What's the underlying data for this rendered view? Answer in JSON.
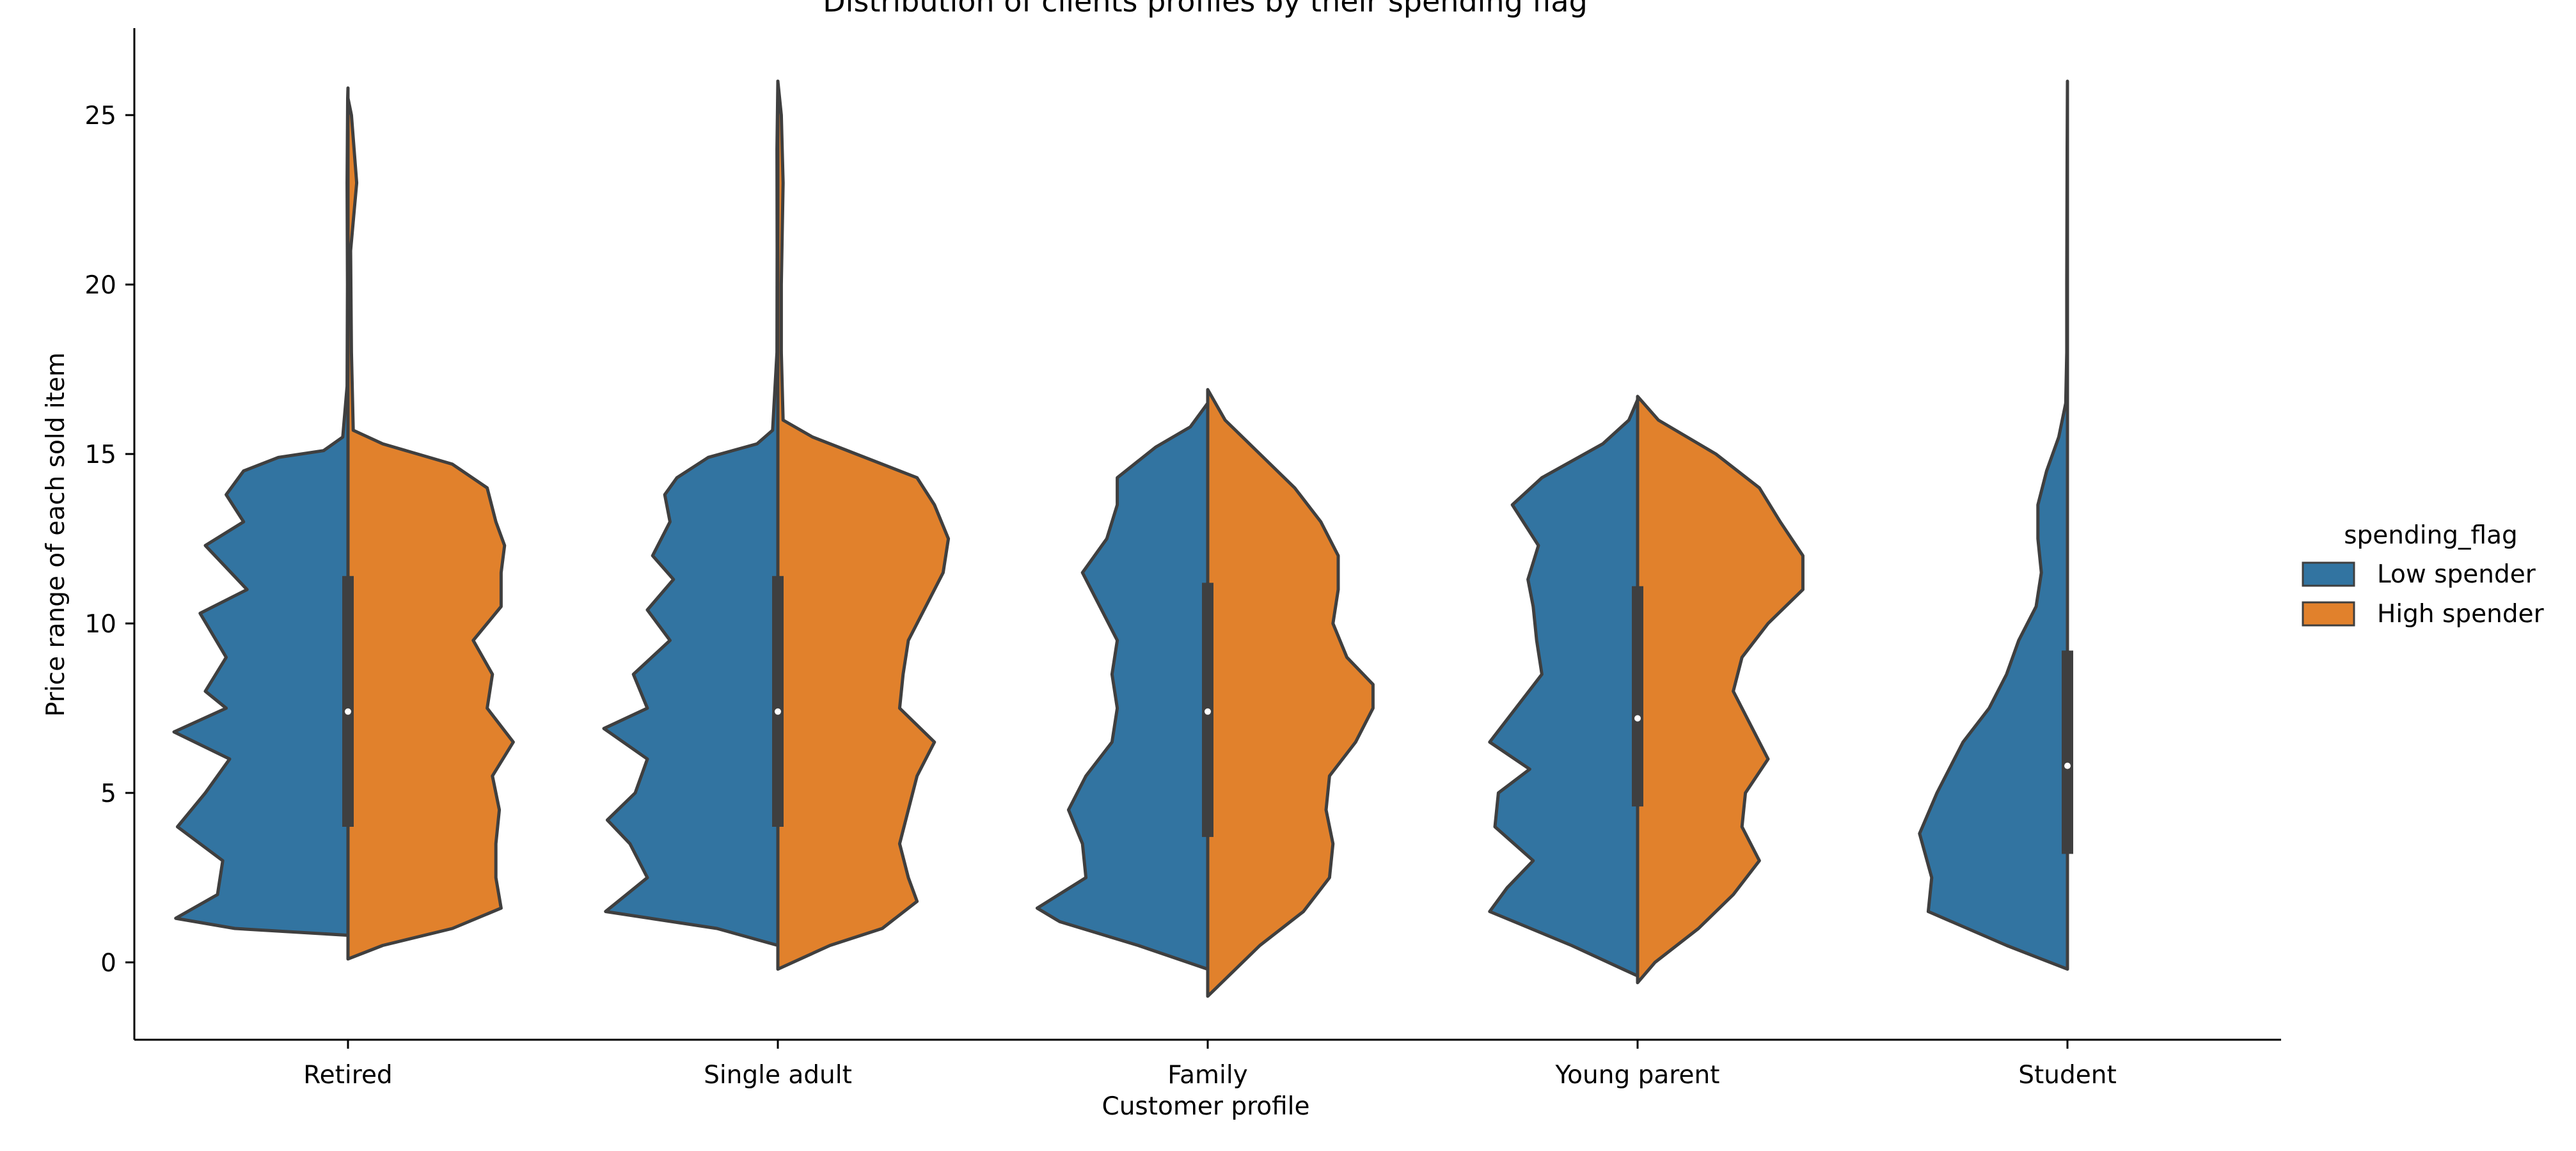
{
  "chart_data": {
    "type": "violin",
    "title": "Distribution of clients profiles by their spending flag",
    "xlabel": "Customer profile",
    "ylabel": "Price range of each sold item",
    "ylim": [
      -2.3,
      27.3
    ],
    "yticks": [
      0,
      5,
      10,
      15,
      20,
      25
    ],
    "categories": [
      "Retired",
      "Single adult",
      "Family",
      "Young parent",
      "Student"
    ],
    "legend": {
      "title": "spending_flag",
      "position": "right",
      "entries": [
        {
          "label": "Low spender",
          "color": "#3274a1"
        },
        {
          "label": "High spender",
          "color": "#e1812c"
        }
      ]
    },
    "series": [
      {
        "name": "Low spender",
        "color": "#3274a1",
        "side": "left",
        "profiles": [
          [
            [
              0.8,
              0
            ],
            [
              1.0,
              0.65
            ],
            [
              1.3,
              0.99
            ],
            [
              2.0,
              0.75
            ],
            [
              3.0,
              0.72
            ],
            [
              4.0,
              0.98
            ],
            [
              5.0,
              0.82
            ],
            [
              6.0,
              0.68
            ],
            [
              6.8,
              1.0
            ],
            [
              7.5,
              0.7
            ],
            [
              8.0,
              0.82
            ],
            [
              9.0,
              0.7
            ],
            [
              10.3,
              0.85
            ],
            [
              11.0,
              0.58
            ],
            [
              12.3,
              0.82
            ],
            [
              13.0,
              0.6
            ],
            [
              13.8,
              0.7
            ],
            [
              14.5,
              0.6
            ],
            [
              14.9,
              0.4
            ],
            [
              15.1,
              0.14
            ],
            [
              15.5,
              0.03
            ],
            [
              17,
              0.005
            ],
            [
              20,
              0.003
            ],
            [
              23,
              0.005
            ],
            [
              25.5,
              0.002
            ],
            [
              25.8,
              0
            ]
          ],
          [
            [
              0.5,
              0
            ],
            [
              1.0,
              0.35
            ],
            [
              1.5,
              0.99
            ],
            [
              2.5,
              0.75
            ],
            [
              3.5,
              0.85
            ],
            [
              4.2,
              0.98
            ],
            [
              5.0,
              0.82
            ],
            [
              6.0,
              0.75
            ],
            [
              6.9,
              1.0
            ],
            [
              7.5,
              0.75
            ],
            [
              8.5,
              0.83
            ],
            [
              9.5,
              0.62
            ],
            [
              10.4,
              0.75
            ],
            [
              11.3,
              0.6
            ],
            [
              12.0,
              0.72
            ],
            [
              13.0,
              0.62
            ],
            [
              13.8,
              0.65
            ],
            [
              14.3,
              0.58
            ],
            [
              14.9,
              0.4
            ],
            [
              15.3,
              0.12
            ],
            [
              15.7,
              0.03
            ],
            [
              18,
              0.005
            ],
            [
              21,
              0.004
            ],
            [
              24,
              0.005
            ],
            [
              26,
              0
            ]
          ],
          [
            [
              -0.2,
              0
            ],
            [
              0.5,
              0.4
            ],
            [
              1.2,
              0.85
            ],
            [
              1.6,
              0.98
            ],
            [
              2.5,
              0.7
            ],
            [
              3.5,
              0.72
            ],
            [
              4.5,
              0.8
            ],
            [
              5.5,
              0.7
            ],
            [
              6.5,
              0.55
            ],
            [
              7.5,
              0.52
            ],
            [
              8.5,
              0.55
            ],
            [
              9.5,
              0.52
            ],
            [
              10.5,
              0.62
            ],
            [
              11.5,
              0.72
            ],
            [
              12.5,
              0.58
            ],
            [
              13.5,
              0.52
            ],
            [
              14.3,
              0.52
            ],
            [
              15.2,
              0.3
            ],
            [
              15.8,
              0.1
            ],
            [
              16.5,
              0
            ]
          ],
          [
            [
              -0.4,
              0
            ],
            [
              0.5,
              0.38
            ],
            [
              1.5,
              0.85
            ],
            [
              2.2,
              0.75
            ],
            [
              3.0,
              0.6
            ],
            [
              4.0,
              0.82
            ],
            [
              5.0,
              0.8
            ],
            [
              5.7,
              0.62
            ],
            [
              6.5,
              0.85
            ],
            [
              7.5,
              0.7
            ],
            [
              8.5,
              0.55
            ],
            [
              9.5,
              0.58
            ],
            [
              10.5,
              0.6
            ],
            [
              11.3,
              0.63
            ],
            [
              12.3,
              0.57
            ],
            [
              13.5,
              0.72
            ],
            [
              14.3,
              0.55
            ],
            [
              15.3,
              0.2
            ],
            [
              16.0,
              0.05
            ],
            [
              16.6,
              0
            ]
          ],
          [
            [
              -0.2,
              0
            ],
            [
              0.5,
              0.35
            ],
            [
              1.5,
              0.8
            ],
            [
              2.5,
              0.78
            ],
            [
              3.8,
              0.85
            ],
            [
              5.0,
              0.75
            ],
            [
              6.5,
              0.6
            ],
            [
              7.5,
              0.45
            ],
            [
              8.5,
              0.35
            ],
            [
              9.5,
              0.28
            ],
            [
              10.5,
              0.18
            ],
            [
              11.5,
              0.15
            ],
            [
              12.5,
              0.17
            ],
            [
              13.5,
              0.17
            ],
            [
              14.5,
              0.12
            ],
            [
              15.5,
              0.05
            ],
            [
              16.5,
              0.01
            ],
            [
              18,
              0.004
            ],
            [
              20,
              0.004
            ],
            [
              22,
              0.003
            ],
            [
              24,
              0.002
            ],
            [
              26,
              0
            ]
          ]
        ]
      },
      {
        "name": "High spender",
        "color": "#e1812c",
        "side": "right",
        "profiles": [
          [
            [
              0.1,
              0
            ],
            [
              0.5,
              0.2
            ],
            [
              1.0,
              0.6
            ],
            [
              1.6,
              0.88
            ],
            [
              2.5,
              0.85
            ],
            [
              3.5,
              0.85
            ],
            [
              4.5,
              0.87
            ],
            [
              5.5,
              0.83
            ],
            [
              6.5,
              0.95
            ],
            [
              7.5,
              0.8
            ],
            [
              8.5,
              0.83
            ],
            [
              9.5,
              0.72
            ],
            [
              10.5,
              0.88
            ],
            [
              11.5,
              0.88
            ],
            [
              12.3,
              0.9
            ],
            [
              13.0,
              0.85
            ],
            [
              14.0,
              0.8
            ],
            [
              14.7,
              0.6
            ],
            [
              15.3,
              0.2
            ],
            [
              15.7,
              0.03
            ],
            [
              18,
              0.02
            ],
            [
              21,
              0.015
            ],
            [
              23,
              0.05
            ],
            [
              25,
              0.02
            ],
            [
              25.5,
              0
            ]
          ],
          [
            [
              -0.2,
              0
            ],
            [
              0.5,
              0.3
            ],
            [
              1.0,
              0.6
            ],
            [
              1.8,
              0.8
            ],
            [
              2.5,
              0.75
            ],
            [
              3.5,
              0.7
            ],
            [
              4.5,
              0.75
            ],
            [
              5.5,
              0.8
            ],
            [
              6.5,
              0.9
            ],
            [
              7.5,
              0.7
            ],
            [
              8.5,
              0.72
            ],
            [
              9.5,
              0.75
            ],
            [
              10.5,
              0.85
            ],
            [
              11.5,
              0.95
            ],
            [
              12.5,
              0.98
            ],
            [
              13.5,
              0.9
            ],
            [
              14.3,
              0.8
            ],
            [
              15.0,
              0.45
            ],
            [
              15.5,
              0.2
            ],
            [
              16.0,
              0.03
            ],
            [
              18,
              0.02
            ],
            [
              20,
              0.02
            ],
            [
              23,
              0.03
            ],
            [
              25,
              0.02
            ],
            [
              26,
              0
            ]
          ],
          [
            [
              -1.0,
              0
            ],
            [
              -0.5,
              0.1
            ],
            [
              0.5,
              0.3
            ],
            [
              1.5,
              0.55
            ],
            [
              2.5,
              0.7
            ],
            [
              3.5,
              0.72
            ],
            [
              4.5,
              0.68
            ],
            [
              5.5,
              0.7
            ],
            [
              6.5,
              0.85
            ],
            [
              7.5,
              0.95
            ],
            [
              8.2,
              0.95
            ],
            [
              9.0,
              0.8
            ],
            [
              10.0,
              0.72
            ],
            [
              11.0,
              0.75
            ],
            [
              12.0,
              0.75
            ],
            [
              13.0,
              0.65
            ],
            [
              14.0,
              0.5
            ],
            [
              15.0,
              0.3
            ],
            [
              16.0,
              0.1
            ],
            [
              16.9,
              0
            ]
          ],
          [
            [
              -0.6,
              0
            ],
            [
              0.0,
              0.1
            ],
            [
              1.0,
              0.35
            ],
            [
              2.0,
              0.55
            ],
            [
              3.0,
              0.7
            ],
            [
              4.0,
              0.6
            ],
            [
              5.0,
              0.62
            ],
            [
              6.0,
              0.75
            ],
            [
              7.0,
              0.65
            ],
            [
              8.0,
              0.55
            ],
            [
              9.0,
              0.6
            ],
            [
              10.0,
              0.75
            ],
            [
              11.0,
              0.95
            ],
            [
              12.0,
              0.95
            ],
            [
              13.0,
              0.82
            ],
            [
              14.0,
              0.7
            ],
            [
              15.0,
              0.45
            ],
            [
              16.0,
              0.12
            ],
            [
              16.7,
              0
            ]
          ]
        ]
      }
    ],
    "box": {
      "whisker_low": [
        4.0,
        4.0,
        3.7,
        4.6,
        3.2
      ],
      "whisker_high": [
        11.4,
        11.4,
        11.2,
        11.1,
        9.2
      ],
      "median": [
        7.4,
        7.4,
        7.4,
        7.2,
        5.8
      ]
    }
  }
}
